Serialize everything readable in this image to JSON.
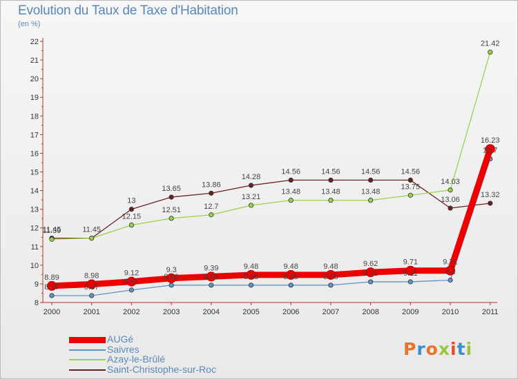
{
  "title": "Evolution du Taux de Taxe d'Habitation",
  "subtitle": "(en %)",
  "logo": {
    "text": "Proxiti",
    "colors": [
      "#e8732a",
      "#3b8ed0",
      "#e8732a",
      "#9bc63b",
      "#e84b2a",
      "#3b8ed0",
      "#9bc63b"
    ]
  },
  "chart_data": {
    "type": "line",
    "x": [
      "2000",
      "2001",
      "2002",
      "2003",
      "2004",
      "2005",
      "2006",
      "2007",
      "2008",
      "2009",
      "2010",
      "2011"
    ],
    "ylim": [
      8,
      22
    ],
    "yticks": [
      "8",
      "9",
      "10",
      "11",
      "12",
      "13",
      "14",
      "15",
      "16",
      "17",
      "18",
      "19",
      "20",
      "21",
      "22"
    ],
    "grid": false,
    "legend_position": "bottom-left",
    "series": [
      {
        "name": "Saint-Christophe-sur-Roc",
        "color": "#6b2020",
        "values": [
          11.45,
          11.45,
          13,
          13.65,
          13.86,
          14.28,
          14.56,
          14.56,
          14.56,
          14.56,
          13.06,
          13.32
        ],
        "labels": [
          "11.45",
          "11.45",
          "13",
          "13.65",
          "13.86",
          "14.28",
          "14.56",
          "14.56",
          "14.56",
          "14.56",
          "13.06",
          "13.32"
        ]
      },
      {
        "name": "Azay-le-Brûlé",
        "color": "#99d14c",
        "values": [
          11.39,
          11.45,
          12.15,
          12.51,
          12.7,
          13.21,
          13.48,
          13.48,
          13.48,
          13.75,
          14.03,
          21.42
        ],
        "labels": [
          "11.39",
          "",
          "12.15",
          "12.51",
          "12.7",
          "13.21",
          "13.48",
          "13.48",
          "13.48",
          "13.75",
          "14.03",
          "21.42"
        ]
      },
      {
        "name": "Saivres",
        "color": "#5e93c4",
        "values": [
          8.37,
          8.37,
          8.67,
          8.93,
          8.93,
          8.93,
          8.93,
          8.93,
          9.11,
          9.11,
          9.2,
          15.7
        ],
        "labels": [
          "8.37",
          "8.37",
          "8.67",
          "8.93",
          "8.93",
          "8.93",
          "8.93",
          "8.93",
          "9.11",
          "9.11",
          "9.2",
          "15.7"
        ]
      },
      {
        "name": "AUGé",
        "color": "#ee0000",
        "values": [
          8.89,
          8.98,
          9.12,
          9.3,
          9.39,
          9.48,
          9.48,
          9.48,
          9.62,
          9.71,
          9.71,
          16.23
        ],
        "labels": [
          "8.89",
          "8.98",
          "9.12",
          "9.3",
          "9.39",
          "9.48",
          "9.48",
          "9.48",
          "9.62",
          "9.71",
          "9.71",
          "16.23"
        ]
      }
    ],
    "legend": [
      "AUGé",
      "Saivres",
      "Azay-le-Brûlé",
      "Saint-Christophe-sur-Roc"
    ]
  }
}
